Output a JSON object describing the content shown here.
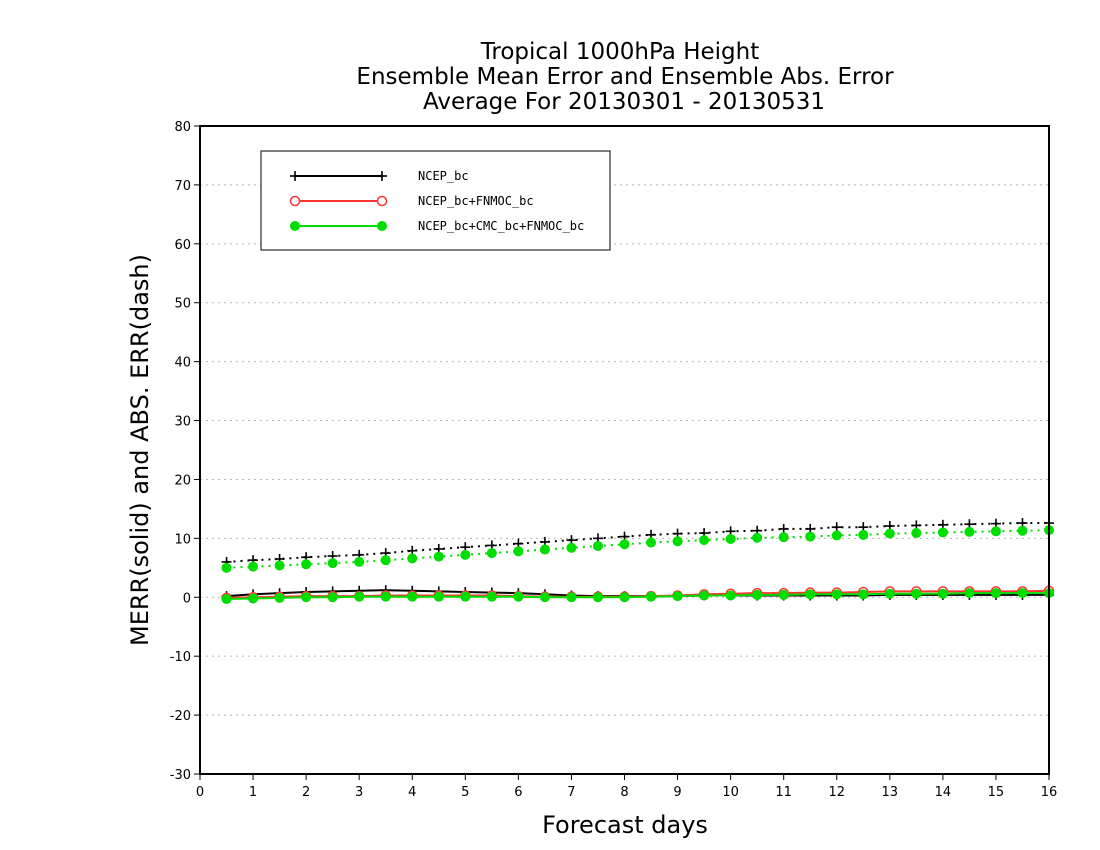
{
  "chart_data": {
    "type": "line",
    "title_lines": [
      "Tropical 1000hPa Height",
      "Ensemble Mean Error and Ensemble Abs. Error",
      "Average For 20130301 - 20130531"
    ],
    "xlabel": "Forecast days",
    "ylabel": "MERR(solid) and ABS. ERR(dash)",
    "xlim": [
      0,
      16
    ],
    "ylim": [
      -30,
      80
    ],
    "xticks": [
      "0",
      "1",
      "2",
      "3",
      "4",
      "5",
      "6",
      "7",
      "8",
      "9",
      "10",
      "11",
      "12",
      "13",
      "14",
      "15",
      "16"
    ],
    "yticks": [
      "-30",
      "-20",
      "-10",
      "0",
      "10",
      "20",
      "30",
      "40",
      "50",
      "60",
      "70",
      "80"
    ],
    "grid": "horizontal dotted",
    "legend_position": "top-left",
    "x": [
      0.5,
      1,
      1.5,
      2,
      2.5,
      3,
      3.5,
      4,
      4.5,
      5,
      5.5,
      6,
      6.5,
      7,
      7.5,
      8,
      8.5,
      9,
      9.5,
      10,
      10.5,
      11,
      11.5,
      12,
      12.5,
      13,
      13.5,
      14,
      14.5,
      15,
      15.5,
      16
    ],
    "series": [
      {
        "name": "NCEP_bc",
        "color": "#000000",
        "marker": "plus",
        "merr": [
          0.2,
          0.5,
          0.7,
          0.9,
          1.0,
          1.1,
          1.2,
          1.1,
          1.0,
          0.9,
          0.8,
          0.7,
          0.5,
          0.3,
          0.2,
          0.2,
          0.2,
          0.2,
          0.3,
          0.3,
          0.3,
          0.3,
          0.3,
          0.3,
          0.3,
          0.4,
          0.4,
          0.4,
          0.4,
          0.4,
          0.4,
          0.4
        ],
        "abs_err": [
          6.0,
          6.3,
          6.5,
          6.8,
          7.0,
          7.2,
          7.5,
          7.9,
          8.2,
          8.5,
          8.8,
          9.1,
          9.4,
          9.7,
          10.0,
          10.3,
          10.6,
          10.8,
          10.9,
          11.2,
          11.3,
          11.6,
          11.6,
          11.9,
          11.9,
          12.1,
          12.2,
          12.3,
          12.4,
          12.5,
          12.6,
          12.6
        ]
      },
      {
        "name": "NCEP_bc+FNMOC_bc",
        "color": "#ff3333",
        "marker": "open-circle",
        "merr": [
          -0.1,
          0.0,
          0.1,
          0.2,
          0.2,
          0.2,
          0.3,
          0.3,
          0.3,
          0.3,
          0.3,
          0.2,
          0.1,
          0.1,
          0.1,
          0.1,
          0.2,
          0.3,
          0.5,
          0.6,
          0.7,
          0.7,
          0.8,
          0.8,
          0.9,
          1.0,
          1.0,
          1.0,
          1.0,
          1.0,
          1.0,
          1.1
        ]
      },
      {
        "name": "NCEP_bc+CMC_bc+FNMOC_bc",
        "color": "#00dd00",
        "marker": "filled-circle",
        "merr": [
          -0.3,
          -0.2,
          -0.1,
          0.0,
          0.0,
          0.1,
          0.1,
          0.1,
          0.1,
          0.1,
          0.1,
          0.1,
          0.0,
          0.0,
          0.0,
          0.0,
          0.1,
          0.2,
          0.3,
          0.3,
          0.4,
          0.4,
          0.5,
          0.5,
          0.5,
          0.6,
          0.6,
          0.6,
          0.7,
          0.7,
          0.7,
          0.7
        ],
        "abs_err": [
          5.0,
          5.2,
          5.4,
          5.6,
          5.8,
          6.0,
          6.3,
          6.6,
          6.9,
          7.2,
          7.5,
          7.8,
          8.1,
          8.4,
          8.7,
          9.0,
          9.3,
          9.5,
          9.7,
          9.9,
          10.1,
          10.2,
          10.3,
          10.5,
          10.6,
          10.8,
          10.9,
          11.0,
          11.1,
          11.2,
          11.3,
          11.4
        ]
      }
    ]
  }
}
